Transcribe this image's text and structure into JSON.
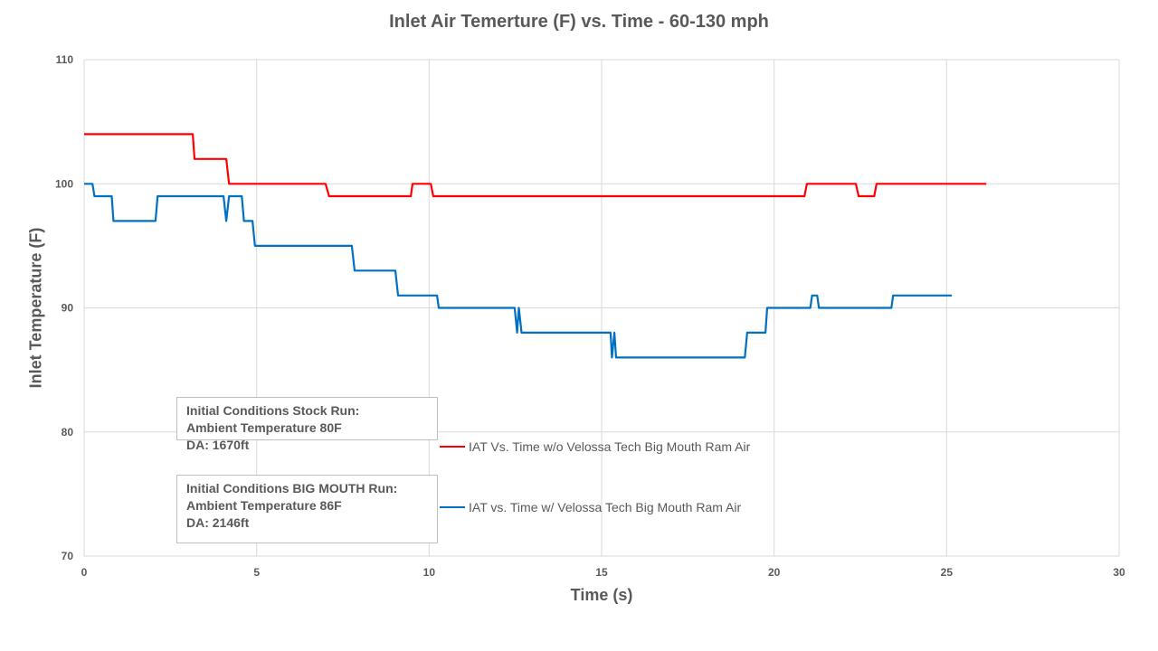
{
  "chart_data": {
    "type": "line",
    "title": "Inlet Air Temerture (F) vs. Time  - 60-130 mph",
    "xlabel": "Time (s)",
    "ylabel": "Inlet Temperature (F)",
    "xlim": [
      0,
      30
    ],
    "ylim": [
      70,
      110
    ],
    "xticks": [
      0,
      5,
      10,
      15,
      20,
      25,
      30
    ],
    "yticks": [
      70,
      80,
      90,
      100,
      110
    ],
    "grid": true,
    "legend_placement": "inside-lower-center",
    "series": [
      {
        "name": "IAT Vs. Time w/o Velossa Tech Big Mouth Ram Air",
        "color": "#ff0000",
        "points": [
          [
            0,
            104
          ],
          [
            3.15,
            104
          ],
          [
            3.2,
            102
          ],
          [
            4.12,
            102
          ],
          [
            4.2,
            100
          ],
          [
            7.0,
            100
          ],
          [
            7.1,
            99
          ],
          [
            9.47,
            99
          ],
          [
            9.52,
            100
          ],
          [
            10.05,
            100
          ],
          [
            10.12,
            99
          ],
          [
            20.88,
            99
          ],
          [
            20.95,
            100
          ],
          [
            22.37,
            100
          ],
          [
            22.45,
            99
          ],
          [
            22.9,
            99
          ],
          [
            22.97,
            100
          ],
          [
            26.15,
            100
          ]
        ]
      },
      {
        "name": "IAT vs. Time w/ Velossa Tech Big Mouth Ram Air",
        "color": "#0070c0",
        "points": [
          [
            0,
            100
          ],
          [
            0.24,
            100
          ],
          [
            0.3,
            99
          ],
          [
            0.8,
            99
          ],
          [
            0.85,
            97
          ],
          [
            2.07,
            97
          ],
          [
            2.13,
            99
          ],
          [
            4.04,
            99
          ],
          [
            4.12,
            97
          ],
          [
            4.2,
            99
          ],
          [
            4.57,
            99
          ],
          [
            4.63,
            97
          ],
          [
            4.88,
            97
          ],
          [
            4.95,
            95
          ],
          [
            7.76,
            95
          ],
          [
            7.84,
            93
          ],
          [
            9.02,
            93
          ],
          [
            9.1,
            91
          ],
          [
            10.23,
            91
          ],
          [
            10.28,
            90
          ],
          [
            12.48,
            90
          ],
          [
            12.55,
            88
          ],
          [
            12.6,
            90
          ],
          [
            12.68,
            88
          ],
          [
            15.26,
            88
          ],
          [
            15.3,
            86
          ],
          [
            15.37,
            88
          ],
          [
            15.42,
            86
          ],
          [
            19.15,
            86
          ],
          [
            19.22,
            88
          ],
          [
            19.75,
            88
          ],
          [
            19.8,
            90
          ],
          [
            21.05,
            90
          ],
          [
            21.1,
            91
          ],
          [
            21.25,
            91
          ],
          [
            21.3,
            90
          ],
          [
            23.4,
            90
          ],
          [
            23.45,
            91
          ],
          [
            25.15,
            91
          ]
        ]
      }
    ],
    "annotations": [
      {
        "lines": [
          "Initial Conditions Stock Run:",
          "Ambient Temperature 80F",
          "DA: 1670ft"
        ]
      },
      {
        "lines": [
          "Initial Conditions BIG MOUTH Run:",
          "Ambient Temperature 86F",
          "DA: 2146ft"
        ]
      }
    ]
  }
}
